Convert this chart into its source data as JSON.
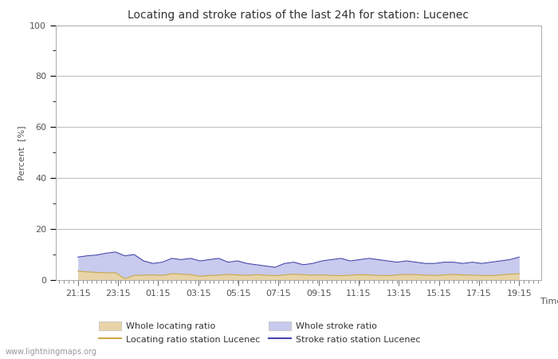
{
  "title": "Locating and stroke ratios of the last 24h for station: Lucenec",
  "xlabel": "Time",
  "ylabel": "Percent  [%]",
  "ylim": [
    0,
    100
  ],
  "yticks_major": [
    0,
    20,
    40,
    60,
    80,
    100
  ],
  "xtick_labels": [
    "21:15",
    "23:15",
    "01:15",
    "03:15",
    "05:15",
    "07:15",
    "09:15",
    "11:15",
    "13:15",
    "15:15",
    "17:15",
    "19:15"
  ],
  "bg_color": "#ffffff",
  "plot_bg_color": "#ffffff",
  "grid_color": "#bbbbbb",
  "watermark": "www.lightningmaps.org",
  "whole_locating_color": "#e8d4a8",
  "whole_stroke_color": "#c8caee",
  "locating_line_color": "#ccaa44",
  "stroke_line_color": "#4444aa",
  "whole_locating_values": [
    3.5,
    3.2,
    3.0,
    2.8,
    2.9,
    0.5,
    1.8,
    1.9,
    2.0,
    1.8,
    2.5,
    2.3,
    2.1,
    1.5,
    1.8,
    1.9,
    2.2,
    2.0,
    1.8,
    2.1,
    1.9,
    1.7,
    2.0,
    2.3,
    2.1,
    1.9,
    2.0,
    1.8,
    1.7,
    1.9,
    2.1,
    2.0,
    1.8,
    1.7,
    2.0,
    2.2,
    2.1,
    1.9,
    1.8,
    2.0,
    2.2,
    2.0,
    1.9,
    1.8,
    1.7,
    2.0,
    2.3,
    2.5
  ],
  "whole_stroke_values": [
    9.0,
    9.5,
    9.8,
    10.5,
    11.0,
    9.5,
    10.0,
    7.5,
    6.5,
    7.0,
    8.5,
    8.0,
    8.5,
    7.5,
    8.0,
    8.5,
    7.0,
    7.5,
    6.5,
    6.0,
    5.5,
    5.0,
    6.5,
    7.0,
    6.0,
    6.5,
    7.5,
    8.0,
    8.5,
    7.5,
    8.0,
    8.5,
    8.0,
    7.5,
    7.0,
    7.5,
    7.0,
    6.5,
    6.5,
    7.0,
    7.0,
    6.5,
    7.0,
    6.5,
    7.0,
    7.5,
    8.0,
    9.0
  ],
  "locating_line_values": [
    3.5,
    3.2,
    3.0,
    2.8,
    2.9,
    0.5,
    1.8,
    1.9,
    2.0,
    1.8,
    2.5,
    2.3,
    2.1,
    1.5,
    1.8,
    1.9,
    2.2,
    2.0,
    1.8,
    2.1,
    1.9,
    1.7,
    2.0,
    2.3,
    2.1,
    1.9,
    2.0,
    1.8,
    1.7,
    1.9,
    2.1,
    2.0,
    1.8,
    1.7,
    2.0,
    2.2,
    2.1,
    1.9,
    1.8,
    2.0,
    2.2,
    2.0,
    1.9,
    1.8,
    1.7,
    2.0,
    2.3,
    2.5
  ],
  "stroke_line_values": [
    9.0,
    9.5,
    9.8,
    10.5,
    11.0,
    9.5,
    10.0,
    7.5,
    6.5,
    7.0,
    8.5,
    8.0,
    8.5,
    7.5,
    8.0,
    8.5,
    7.0,
    7.5,
    6.5,
    6.0,
    5.5,
    5.0,
    6.5,
    7.0,
    6.0,
    6.5,
    7.5,
    8.0,
    8.5,
    7.5,
    8.0,
    8.5,
    8.0,
    7.5,
    7.0,
    7.5,
    7.0,
    6.5,
    6.5,
    7.0,
    7.0,
    6.5,
    7.0,
    6.5,
    7.0,
    7.5,
    8.0,
    9.0
  ],
  "legend_labels": [
    "Whole locating ratio",
    "Locating ratio station Lucenec",
    "Whole stroke ratio",
    "Stroke ratio station Lucenec"
  ]
}
